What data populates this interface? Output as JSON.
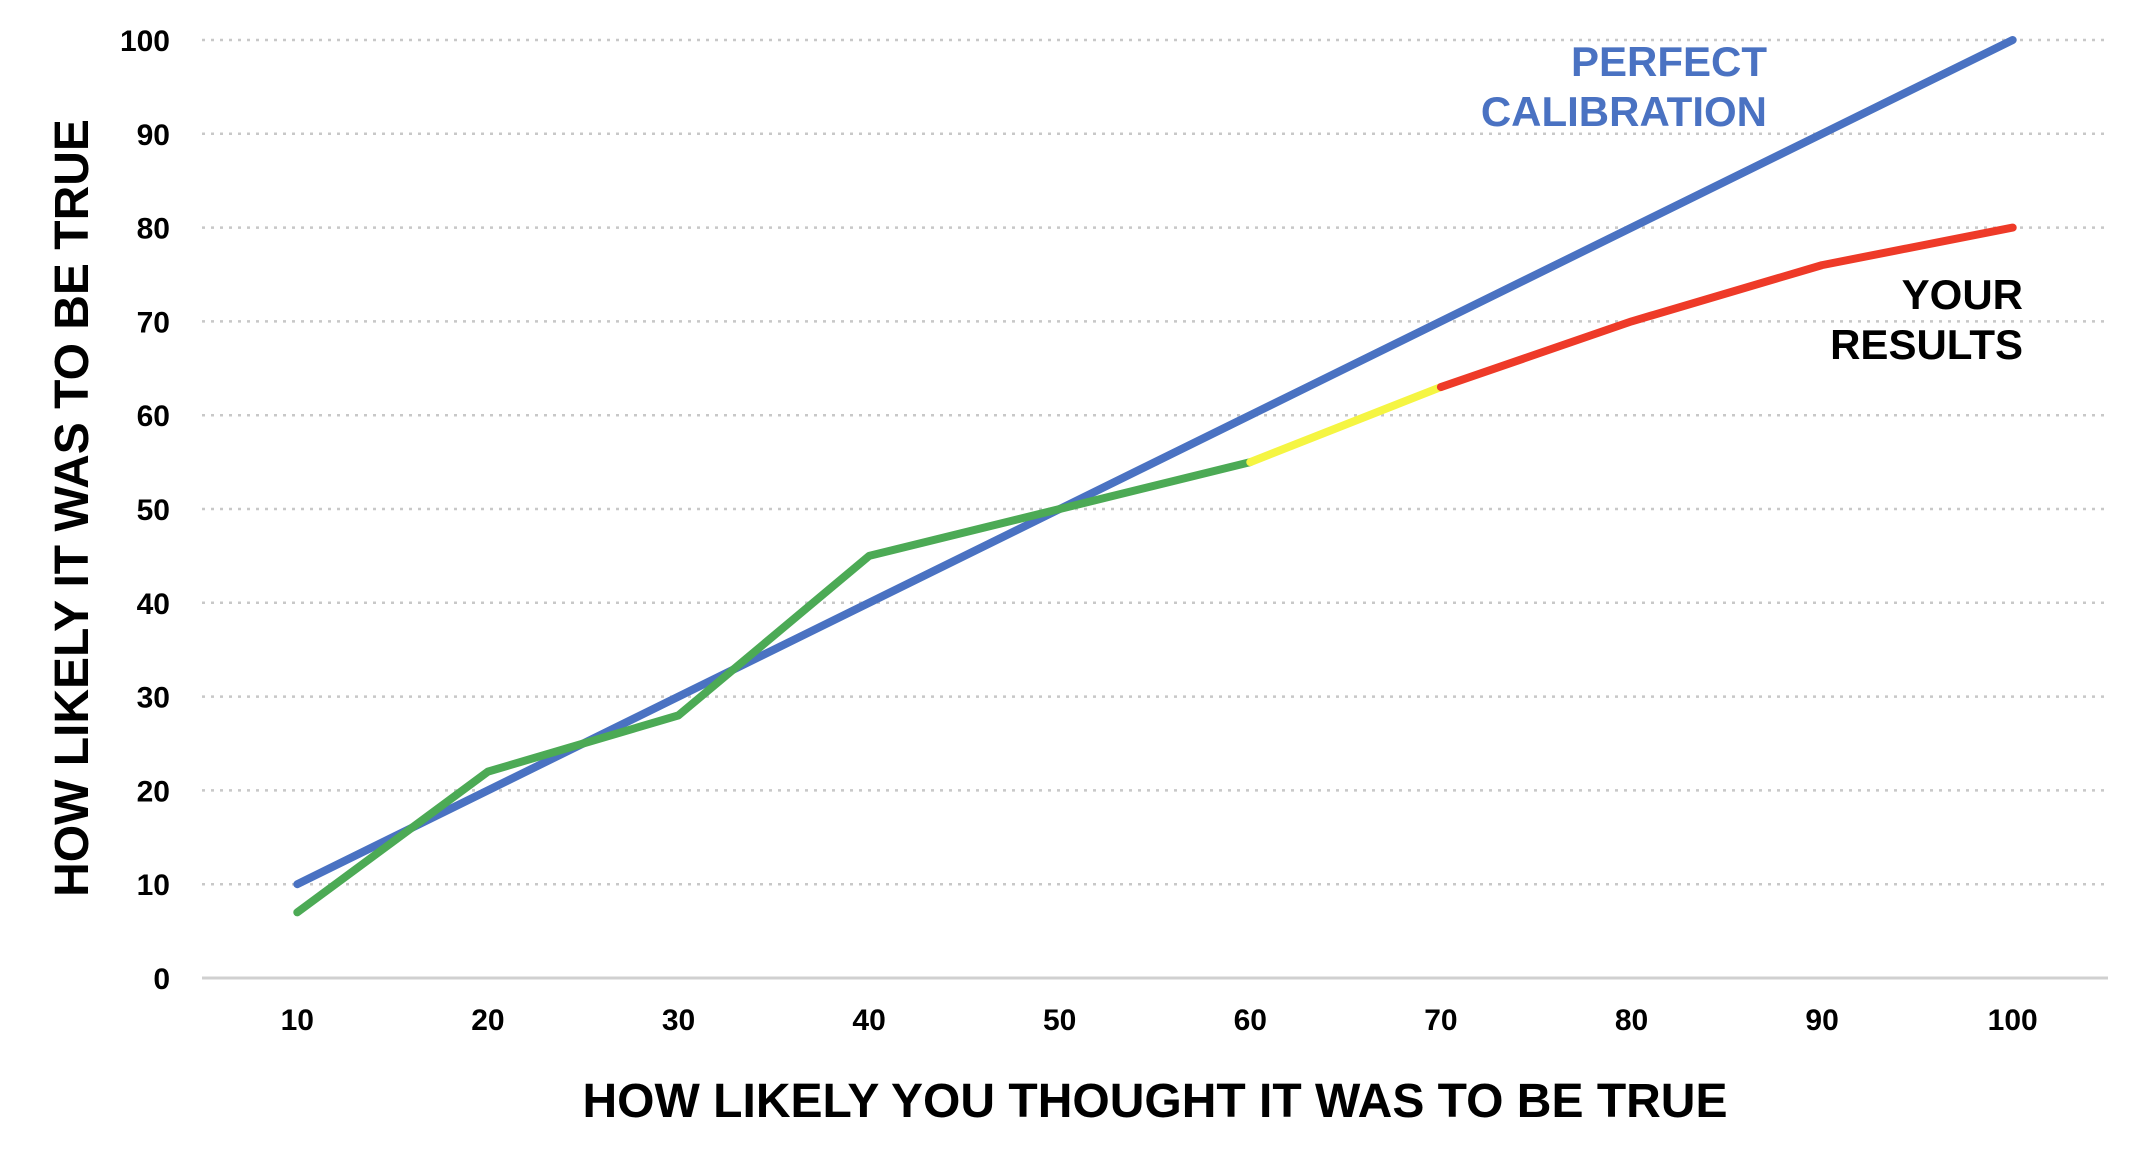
{
  "chart_data": {
    "type": "line",
    "title": "",
    "xlabel": "HOW LIKELY YOU THOUGHT IT WAS TO BE TRUE",
    "ylabel": "HOW LIKELY IT WAS TO BE TRUE",
    "xlim": [
      5,
      105
    ],
    "ylim": [
      0,
      100
    ],
    "x_ticks": [
      10,
      20,
      30,
      40,
      50,
      60,
      70,
      80,
      90,
      100
    ],
    "y_ticks": [
      0,
      10,
      20,
      30,
      40,
      50,
      60,
      70,
      80,
      90,
      100
    ],
    "grid": "horizontal dotted",
    "legend": "none",
    "series": [
      {
        "name": "PERFECT CALIBRATION",
        "color": "#4a72c2",
        "x": [
          10,
          100
        ],
        "y": [
          10,
          100
        ]
      },
      {
        "name": "YOUR RESULTS",
        "x": [
          10,
          20,
          30,
          40,
          50,
          60,
          70,
          80,
          90,
          100
        ],
        "y": [
          7,
          22,
          28,
          45,
          50,
          55,
          63,
          70,
          76,
          80
        ],
        "segment_colors": [
          {
            "from": 10,
            "to": 60,
            "color": "#4caa55"
          },
          {
            "from": 60,
            "to": 70,
            "color": "#f5f542"
          },
          {
            "from": 70,
            "to": 100,
            "color": "#ee3a28"
          }
        ]
      }
    ],
    "annotations": [
      {
        "lines": [
          "PERFECT",
          "CALIBRATION"
        ],
        "color": "#4a72c2"
      },
      {
        "lines": [
          "YOUR",
          "RESULTS"
        ],
        "color": "#000000"
      }
    ]
  }
}
